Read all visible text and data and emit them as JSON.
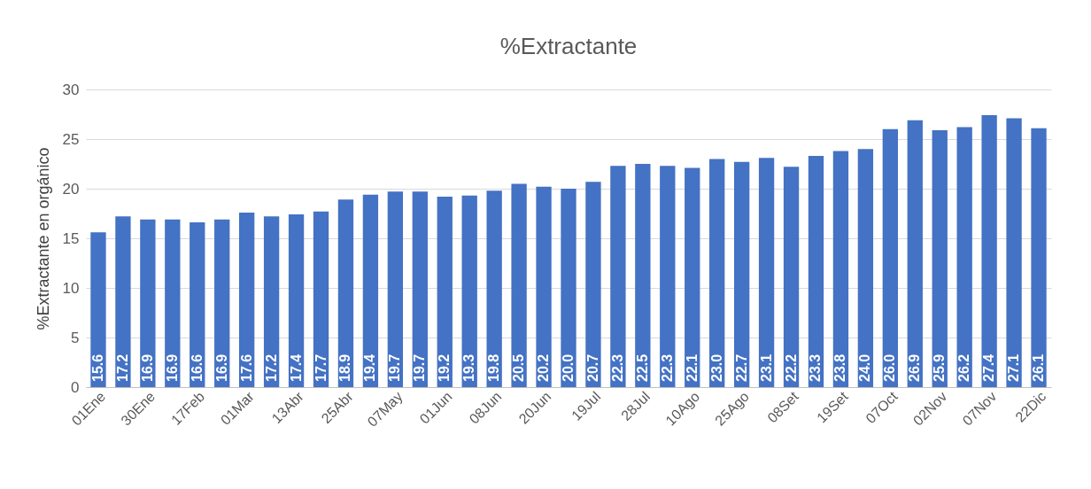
{
  "chart_data": {
    "type": "bar",
    "title": "%Extractante",
    "ylabel": "%Extractante en orgánico",
    "categories": [
      "01Ene",
      null,
      "30Ene",
      null,
      "17Feb",
      null,
      "01Mar",
      null,
      "13Abr",
      null,
      "25Abr",
      null,
      "07May",
      null,
      "01Jun",
      null,
      "08Jun",
      null,
      "20Jun",
      null,
      "19Jul",
      null,
      "28Jul",
      null,
      "10Ago",
      null,
      "25Ago",
      null,
      "08Set",
      null,
      "19Set",
      null,
      "07Oct",
      null,
      "02Nov",
      null,
      "07Nov",
      null,
      "22Dic"
    ],
    "values": [
      15.6,
      17.2,
      16.9,
      16.9,
      16.6,
      16.9,
      17.6,
      17.2,
      17.4,
      17.7,
      18.9,
      19.4,
      19.7,
      19.7,
      19.2,
      19.3,
      19.8,
      20.5,
      20.2,
      20.0,
      20.7,
      22.3,
      22.5,
      22.3,
      22.1,
      23.0,
      22.7,
      23.1,
      22.2,
      23.3,
      23.8,
      24.0,
      26.0,
      26.9,
      25.9,
      26.2,
      27.4,
      27.1,
      26.1
    ],
    "value_labels": [
      "15.6",
      "17.2",
      "16.9",
      "16.9",
      "16.6",
      "16.9",
      "17.6",
      "17.2",
      "17.4",
      "17.7",
      "18.9",
      "19.4",
      "19.7",
      "19.7",
      "19.2",
      "19.3",
      "19.8",
      "20.5",
      "20.2",
      "20.0",
      "20.7",
      "22.3",
      "22.5",
      "22.3",
      "22.1",
      "23.0",
      "22.7",
      "23.1",
      "22.2",
      "23.3",
      "23.8",
      "24.0",
      "26.0",
      "26.9",
      "25.9",
      "26.2",
      "27.4",
      "27.1",
      "26.1"
    ],
    "color": "#4472c4",
    "ylim": [
      0,
      30
    ],
    "yticks": [
      0,
      5,
      10,
      15,
      20,
      25,
      30
    ],
    "grid": "y"
  }
}
